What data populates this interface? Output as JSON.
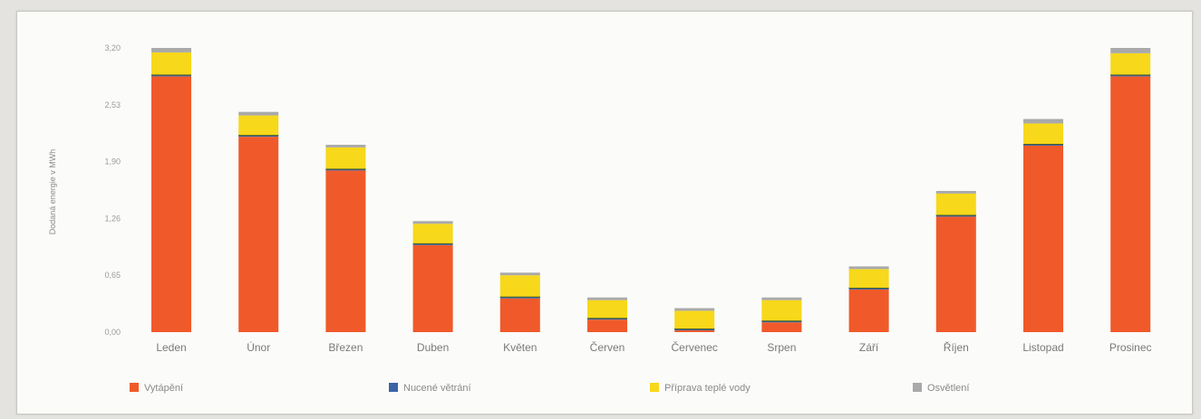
{
  "chart_data": {
    "type": "bar",
    "stacked": true,
    "ylabel": "Dodaná energie v MWh",
    "yticks": [
      "0,00",
      "0,65",
      "1,26",
      "1,90",
      "2,53",
      "3,20"
    ],
    "ylim": [
      0,
      3.2
    ],
    "grid": false,
    "legend_position": "bottom",
    "categories": [
      "Leden",
      "Únor",
      "Březen",
      "Duben",
      "Květen",
      "Červen",
      "Červenec",
      "Srpen",
      "Září",
      "Říjen",
      "Listopad",
      "Prosinec"
    ],
    "series": [
      {
        "name": "Vytápění",
        "color": "#f05a2a",
        "values": [
          2.88,
          2.2,
          1.82,
          0.98,
          0.38,
          0.14,
          0.02,
          0.11,
          0.48,
          1.3,
          2.1,
          2.88
        ]
      },
      {
        "name": "Nucené větrání",
        "color": "#3c63a8",
        "values": [
          0.02,
          0.02,
          0.02,
          0.02,
          0.02,
          0.02,
          0.02,
          0.02,
          0.02,
          0.02,
          0.02,
          0.02
        ]
      },
      {
        "name": "Příprava teplé vody",
        "color": "#f7d81a",
        "values": [
          0.25,
          0.22,
          0.24,
          0.22,
          0.24,
          0.2,
          0.2,
          0.23,
          0.21,
          0.24,
          0.23,
          0.24
        ]
      },
      {
        "name": "Osvětlení",
        "color": "#a9a9a9",
        "values": [
          0.05,
          0.04,
          0.03,
          0.03,
          0.03,
          0.03,
          0.03,
          0.03,
          0.03,
          0.03,
          0.05,
          0.06
        ]
      }
    ]
  }
}
